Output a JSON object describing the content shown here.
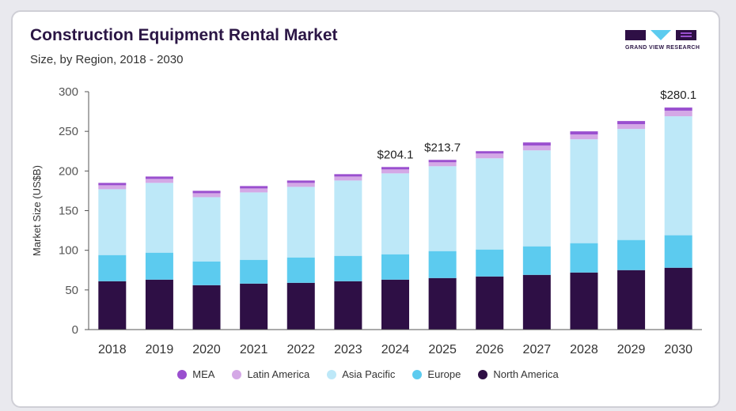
{
  "header": {
    "title": "Construction Equipment Rental Market",
    "subtitle": "Size, by Region, 2018 - 2030",
    "logo_text": "GRAND VIEW RESEARCH"
  },
  "colors": {
    "North America": "#2e0f45",
    "Europe": "#5ccbef",
    "Asia Pacific": "#bde8f8",
    "Latin America": "#d4a8e6",
    "MEA": "#9a4fcf"
  },
  "legend_order": [
    "MEA",
    "Latin America",
    "Asia Pacific",
    "Europe",
    "North America"
  ],
  "chart_data": {
    "type": "bar",
    "stacked": true,
    "categories": [
      "2018",
      "2019",
      "2020",
      "2021",
      "2022",
      "2023",
      "2024",
      "2025",
      "2026",
      "2027",
      "2028",
      "2029",
      "2030"
    ],
    "series": [
      {
        "name": "North America",
        "values": [
          61,
          63,
          56,
          58,
          59,
          61,
          63,
          65,
          67,
          69,
          72,
          75,
          78
        ]
      },
      {
        "name": "Europe",
        "values": [
          33,
          34,
          30,
          30,
          32,
          32,
          32,
          34,
          34,
          36,
          37,
          38,
          41
        ]
      },
      {
        "name": "Asia Pacific",
        "values": [
          83,
          88,
          81,
          85,
          89,
          95,
          102,
          107,
          115,
          121,
          131,
          140,
          150
        ]
      },
      {
        "name": "Latin America",
        "values": [
          5,
          5,
          5,
          5,
          5,
          5,
          5,
          5,
          6,
          6,
          6,
          6,
          7
        ]
      },
      {
        "name": "MEA",
        "values": [
          3,
          3,
          3,
          3,
          3,
          3,
          3,
          3,
          3,
          4,
          4,
          4,
          4
        ]
      }
    ],
    "data_labels": [
      {
        "category": "2024",
        "text": "$204.1"
      },
      {
        "category": "2025",
        "text": "$213.7"
      },
      {
        "category": "2030",
        "text": "$280.1"
      }
    ],
    "ylabel": "Market Size (US$B)",
    "xlabel": "",
    "ylim": [
      0,
      300
    ],
    "yticks": [
      0,
      50,
      100,
      150,
      200,
      250,
      300
    ],
    "grid": false,
    "legend_position": "bottom"
  }
}
